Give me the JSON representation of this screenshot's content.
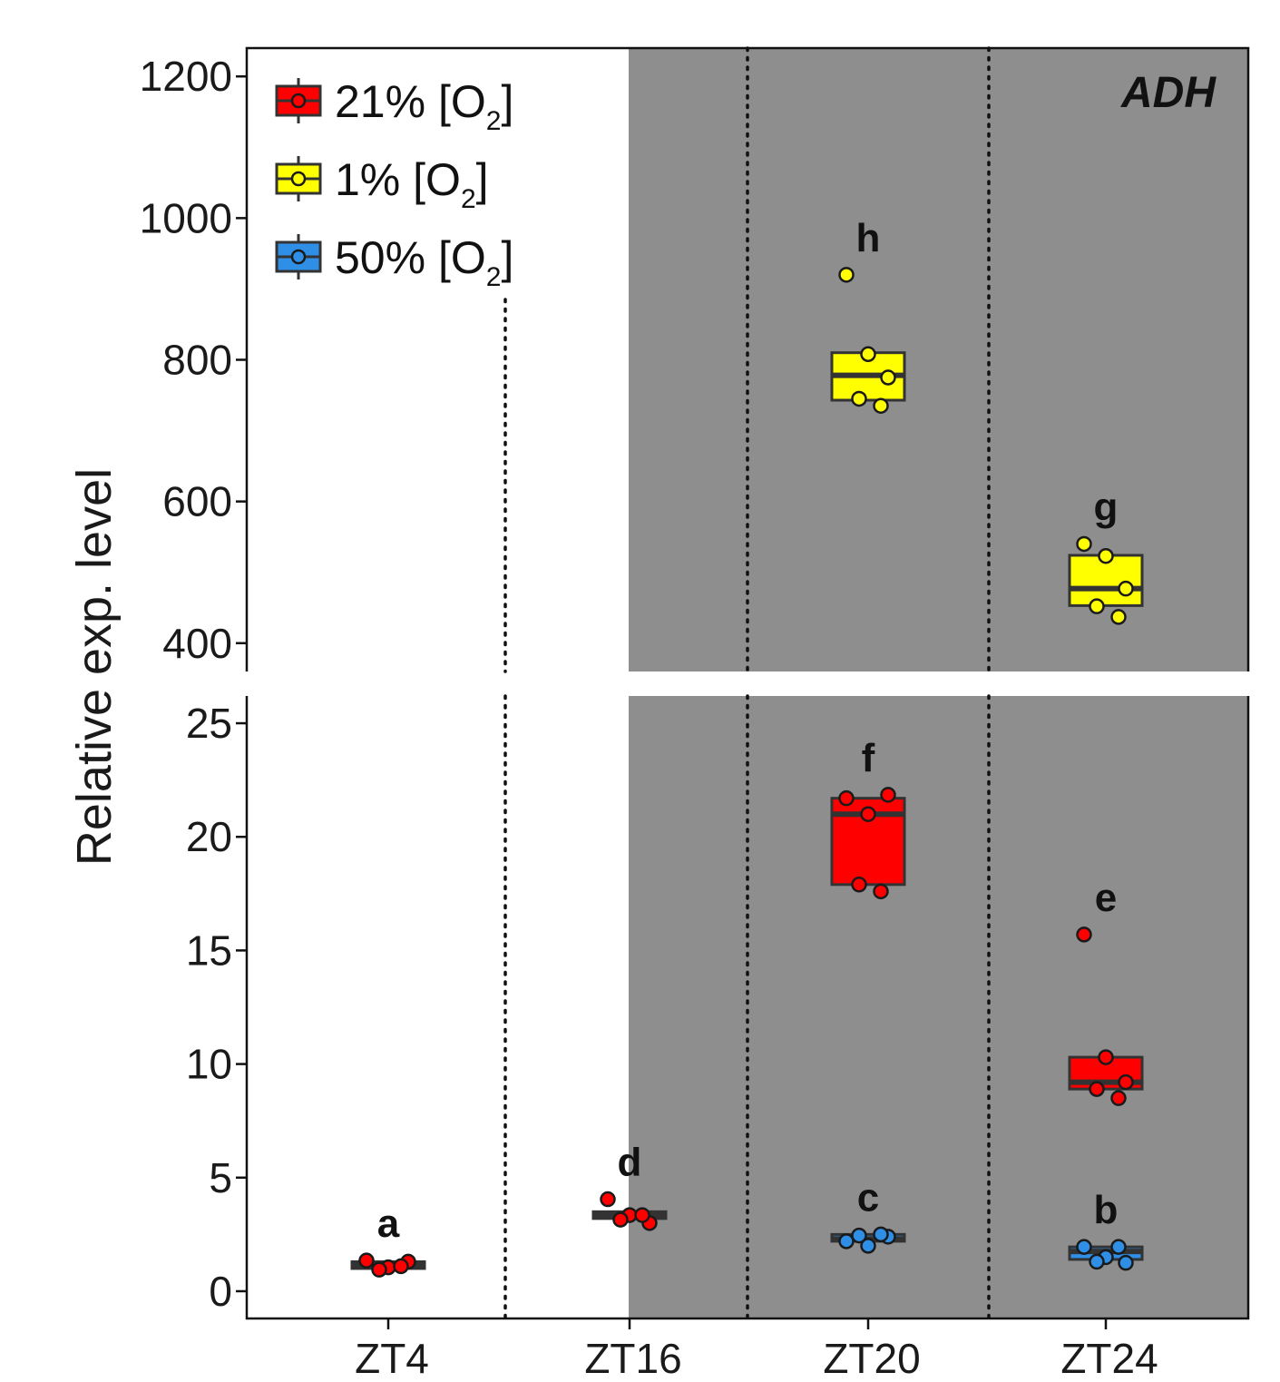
{
  "chart_data": {
    "type": "box",
    "gene_label": "ADH",
    "ylabel": "Relative exp. level",
    "xlabel": "",
    "categories": [
      "ZT4",
      "ZT16",
      "ZT20",
      "ZT24"
    ],
    "dark_period_start": "ZT16",
    "y_axis_broken": true,
    "upper_panel": {
      "ylim": [
        360,
        1240
      ],
      "ticks": [
        400,
        600,
        800,
        1000,
        1200
      ]
    },
    "lower_panel": {
      "ylim": [
        -1.2,
        26.2
      ],
      "ticks": [
        0,
        5,
        10,
        15,
        20,
        25
      ]
    },
    "legend": {
      "position": "top-left",
      "entries": [
        {
          "label": "21% [O",
          "sub": "2",
          "close": "]",
          "color": "#ff0000"
        },
        {
          "label": " 1% [O",
          "sub": "2",
          "close": "]",
          "color": "#ffff00"
        },
        {
          "label": "50% [O",
          "sub": "2",
          "close": "]",
          "color": "#2f8fe6"
        }
      ]
    },
    "series": [
      {
        "name": "21% [O2]",
        "color": "#ff0000",
        "panel": "lower",
        "boxes": [
          {
            "x": "ZT4",
            "q1": 1.0,
            "median": 1.15,
            "q3": 1.3,
            "points": [
              1.35,
              1.05,
              1.3,
              0.95,
              1.1
            ],
            "letter": "a"
          },
          {
            "x": "ZT16",
            "q1": 3.2,
            "median": 3.35,
            "q3": 3.5,
            "points": [
              4.05,
              3.35,
              3.0,
              3.15,
              3.35
            ],
            "letter": "d"
          },
          {
            "x": "ZT20",
            "q1": 17.9,
            "median": 21.0,
            "q3": 21.7,
            "points": [
              21.7,
              21.0,
              21.85,
              17.9,
              17.6
            ],
            "letter": "f"
          },
          {
            "x": "ZT24",
            "q1": 8.9,
            "median": 9.2,
            "q3": 10.3,
            "points": [
              15.7,
              10.3,
              9.2,
              8.9,
              8.5
            ],
            "letter": "e"
          }
        ]
      },
      {
        "name": "1% [O2]",
        "color": "#ffff00",
        "panel": "upper",
        "boxes": [
          {
            "x": "ZT20",
            "q1": 743,
            "median": 778,
            "q3": 810,
            "points": [
              920,
              808,
              775,
              745,
              735
            ],
            "letter": "h"
          },
          {
            "x": "ZT24",
            "q1": 453,
            "median": 477,
            "q3": 524,
            "points": [
              540,
              523,
              477,
              452,
              437
            ],
            "letter": "g"
          }
        ]
      },
      {
        "name": "50% [O2]",
        "color": "#2f8fe6",
        "panel": "lower",
        "boxes": [
          {
            "x": "ZT20",
            "q1": 2.2,
            "median": 2.3,
            "q3": 2.5,
            "points": [
              2.2,
              2.0,
              2.4,
              2.45,
              2.5
            ],
            "letter": "c"
          },
          {
            "x": "ZT24",
            "q1": 1.4,
            "median": 1.75,
            "q3": 1.95,
            "points": [
              1.95,
              1.5,
              1.25,
              1.3,
              1.95
            ],
            "letter": "b"
          }
        ]
      }
    ]
  }
}
